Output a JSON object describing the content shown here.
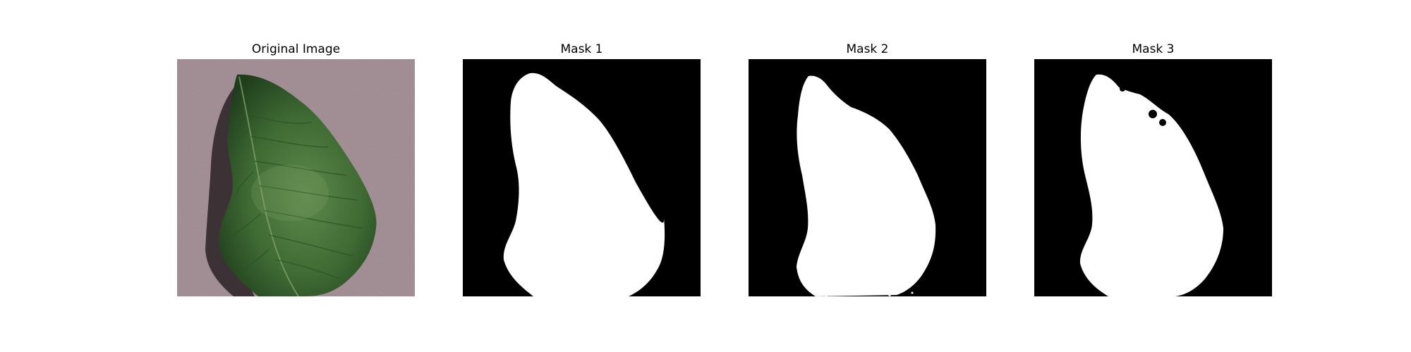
{
  "panels": [
    {
      "title": "Original Image",
      "kind": "photo",
      "subject": "leaf-photo"
    },
    {
      "title": "Mask 1",
      "kind": "mask",
      "subject": "leaf-mask"
    },
    {
      "title": "Mask 2",
      "kind": "mask",
      "subject": "leaf-mask"
    },
    {
      "title": "Mask 3",
      "kind": "mask",
      "subject": "leaf-mask"
    }
  ],
  "colors": {
    "background_photo": "#a8949a",
    "leaf_dark": "#1f3d1c",
    "leaf_mid": "#3f6b34",
    "leaf_light": "#5e8a4c",
    "shadow": "#2a2224",
    "mask_bg": "#000000",
    "mask_fg": "#ffffff"
  }
}
